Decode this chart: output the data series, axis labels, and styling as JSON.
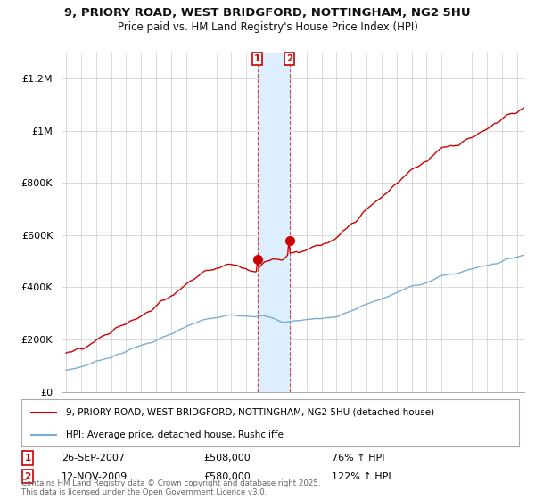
{
  "title": "9, PRIORY ROAD, WEST BRIDGFORD, NOTTINGHAM, NG2 5HU",
  "subtitle": "Price paid vs. HM Land Registry's House Price Index (HPI)",
  "legend_line1": "9, PRIORY ROAD, WEST BRIDGFORD, NOTTINGHAM, NG2 5HU (detached house)",
  "legend_line2": "HPI: Average price, detached house, Rushcliffe",
  "footnote": "Contains HM Land Registry data © Crown copyright and database right 2025.\nThis data is licensed under the Open Government Licence v3.0.",
  "sale1_date": "26-SEP-2007",
  "sale1_price": "£508,000",
  "sale1_hpi": "76% ↑ HPI",
  "sale1_year": 2007.73,
  "sale1_value": 508000,
  "sale2_date": "12-NOV-2009",
  "sale2_price": "£580,000",
  "sale2_hpi": "122% ↑ HPI",
  "sale2_year": 2009.87,
  "sale2_value": 580000,
  "property_color": "#cc0000",
  "hpi_color": "#7aadd4",
  "shade_color": "#ddeeff",
  "ylim": [
    0,
    1300000
  ],
  "yticks": [
    0,
    200000,
    400000,
    600000,
    800000,
    1000000,
    1200000
  ],
  "ytick_labels": [
    "£0",
    "£200K",
    "£400K",
    "£600K",
    "£800K",
    "£1M",
    "£1.2M"
  ],
  "xmin": 1994.7,
  "xmax": 2025.5,
  "background": "#ffffff",
  "grid_color": "#cccccc"
}
